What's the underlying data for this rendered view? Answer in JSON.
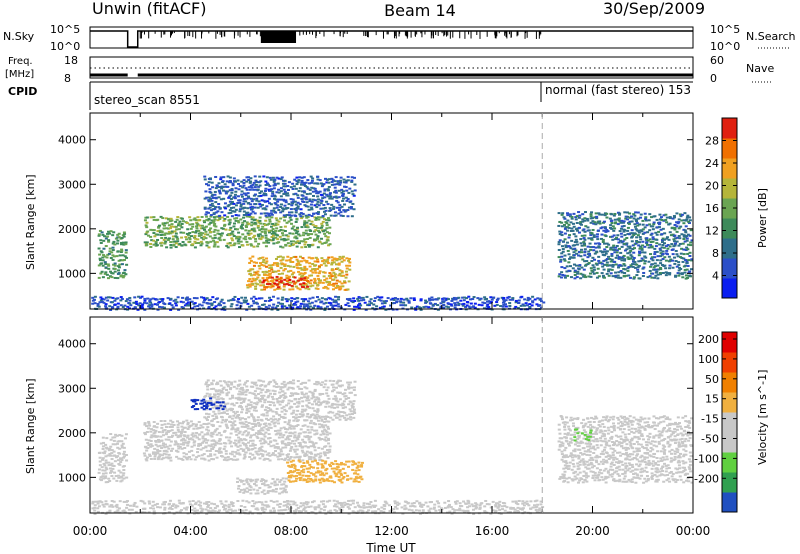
{
  "header": {
    "station": "Unwin (fitACF)",
    "beam": "Beam 14",
    "date": "30/Sep/2009"
  },
  "top_panels": {
    "nsky_label": "N.Sky",
    "nsearch_label": "N.Search",
    "nsky_ticks": [
      "10^5",
      "10^0"
    ],
    "nsky_ticks_right": [
      "10^5",
      "10^0"
    ],
    "freq_label_1": "Freq.",
    "freq_label_2": "[MHz]",
    "freq_ticks": [
      "18",
      "8"
    ],
    "nave_label": "Nave",
    "nave_ticks": [
      "60",
      "0"
    ],
    "cpid_label": "CPID",
    "cpid_modes": [
      {
        "name": "stereo_scan 8551",
        "start": 0.0
      },
      {
        "name": "normal (fast stereo) 153",
        "start": 18.0
      }
    ]
  },
  "colors": {
    "power_scale": [
      "#0a1ef0",
      "#2b4fc8",
      "#2e6e8a",
      "#3d8a5a",
      "#6aa552",
      "#b5b53a",
      "#f0a020",
      "#f07000",
      "#e02010",
      "#e00000"
    ],
    "velocity_scale": [
      "#e00000",
      "#f04000",
      "#f08000",
      "#f0b040",
      "#c8c8c8",
      "#c8c8c8",
      "#60d040",
      "#30a050",
      "#2050c0",
      "#1030c0"
    ]
  },
  "chart_data": [
    {
      "type": "heatmap",
      "name": "Power",
      "ylabel": "Slant Range [km]",
      "yticks": [
        "1000",
        "2000",
        "3000",
        "4000"
      ],
      "ylim": [
        200,
        4600
      ],
      "xlim": [
        0,
        24
      ],
      "colorbar_label": "Power [dB]",
      "colorbar_ticks": [
        "4",
        "8",
        "12",
        "16",
        "20",
        "24",
        "28"
      ],
      "colorbar_range": [
        0,
        32
      ],
      "regions": [
        {
          "t0": 0.3,
          "t1": 1.4,
          "r0": 900,
          "r1": 2000,
          "v": 12
        },
        {
          "t0": 2.1,
          "t1": 9.5,
          "r0": 1600,
          "r1": 2300,
          "v": 14
        },
        {
          "t0": 4.5,
          "t1": 10.5,
          "r0": 2300,
          "r1": 3200,
          "v": 6
        },
        {
          "t0": 6.2,
          "t1": 10.3,
          "r0": 650,
          "r1": 1400,
          "v": 20
        },
        {
          "t0": 6.8,
          "t1": 8.6,
          "r0": 700,
          "r1": 950,
          "v": 27
        },
        {
          "t0": 18.6,
          "t1": 23.9,
          "r0": 900,
          "r1": 2400,
          "v": 8
        },
        {
          "t0": 0.0,
          "t1": 18.0,
          "r0": 200,
          "r1": 500,
          "v": 5
        }
      ]
    },
    {
      "type": "heatmap",
      "name": "Velocity",
      "ylabel": "Slant Range [km]",
      "yticks": [
        "1000",
        "2000",
        "3000",
        "4000"
      ],
      "ylim": [
        200,
        4600
      ],
      "xlim": [
        0,
        24
      ],
      "colorbar_label": "Velocity [m s^-1]",
      "colorbar_ticks": [
        "200",
        "100",
        "50",
        "15",
        "-15",
        "-50",
        "-100",
        "-200"
      ],
      "regions": [
        {
          "t0": 0.3,
          "t1": 1.4,
          "r0": 900,
          "r1": 2000,
          "v": 0
        },
        {
          "t0": 2.1,
          "t1": 9.5,
          "r0": 1400,
          "r1": 2300,
          "v": 0
        },
        {
          "t0": 4.5,
          "t1": 10.5,
          "r0": 2300,
          "r1": 3200,
          "v": 0
        },
        {
          "t0": 7.8,
          "t1": 10.8,
          "r0": 900,
          "r1": 1400,
          "v": 60
        },
        {
          "t0": 5.8,
          "t1": 7.8,
          "r0": 650,
          "r1": 1000,
          "v": 10
        },
        {
          "t0": 4.0,
          "t1": 5.3,
          "r0": 2550,
          "r1": 2800,
          "v": -220
        },
        {
          "t0": 18.6,
          "t1": 23.9,
          "r0": 900,
          "r1": 2400,
          "v": 0
        },
        {
          "t0": 19.2,
          "t1": 19.9,
          "r0": 1850,
          "r1": 2100,
          "v": -80
        },
        {
          "t0": 0.0,
          "t1": 18.0,
          "r0": 200,
          "r1": 500,
          "v": -10
        }
      ]
    }
  ],
  "xaxis": {
    "label": "Time UT",
    "ticks": [
      "00:00",
      "04:00",
      "08:00",
      "12:00",
      "16:00",
      "20:00",
      "00:00"
    ]
  }
}
